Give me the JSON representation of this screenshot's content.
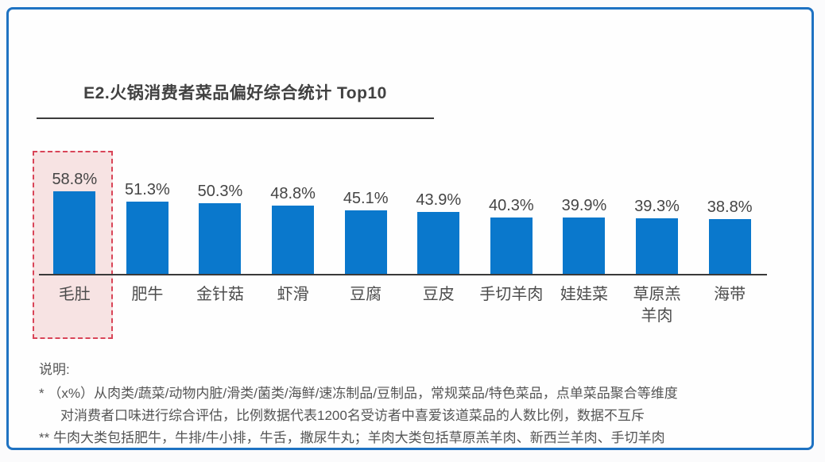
{
  "card": {
    "border_color": "#1e72c2",
    "background": "#fefefe"
  },
  "chart_data": {
    "type": "bar",
    "title": "E2.火锅消费者菜品偏好综合统计 Top10",
    "categories": [
      "毛肚",
      "肥牛",
      "金针菇",
      "虾滑",
      "豆腐",
      "豆皮",
      "手切羊肉",
      "娃娃菜",
      "草原羔羊肉",
      "海带"
    ],
    "category_display": [
      "毛肚",
      "肥牛",
      "金针菇",
      "虾滑",
      "豆腐",
      "豆皮",
      "手切羊肉",
      "娃娃菜",
      "草原羔\n羊肉",
      "海带"
    ],
    "values": [
      58.8,
      51.3,
      50.3,
      48.8,
      45.1,
      43.9,
      40.3,
      39.9,
      39.3,
      38.8
    ],
    "value_suffix": "%",
    "highlight_index": 0,
    "bar_color": "#0a78cc",
    "highlight_fill": "#f7e3e3",
    "highlight_border": "#d94558",
    "axis_line_color": "#3a3a3a",
    "grid": false,
    "legend": false,
    "ylim": [
      0,
      62
    ],
    "xlabel": "",
    "ylabel": ""
  },
  "notes": {
    "heading": "说明:",
    "line1": "* （x%）从肉类/蔬菜/动物内脏/滑类/菌类/海鲜/速冻制品/豆制品，常规菜品/特色菜品，点单菜品聚合等维度",
    "line2": "对消费者口味进行综合评估，比例数据代表1200名受访者中喜爱该道菜品的人数比例，数据不互斥",
    "line3": "** 牛肉大类包括肥牛，牛排/牛小排，牛舌，撒尿牛丸；羊肉大类包括草原羔羊肉、新西兰羊肉、手切羊肉"
  }
}
